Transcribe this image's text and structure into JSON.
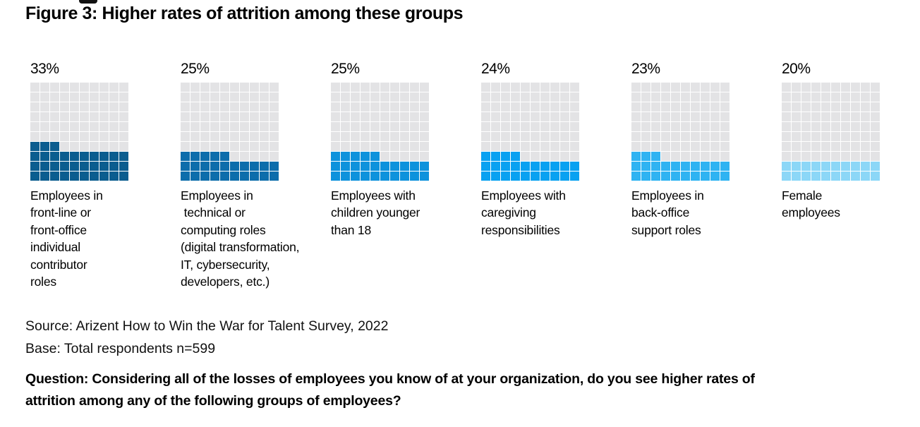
{
  "title": "Figure 3: Higher rates of attrition among these groups",
  "chart_data": {
    "type": "bar",
    "variant": "waffle-grid",
    "grid": {
      "rows": 10,
      "cols": 10,
      "cell_unit_percent": 1
    },
    "unit": "%",
    "categories": [
      "Employees in front-line or front-office individual contributor roles",
      "Employees in technical or computing roles (digital transformation, IT, cybersecurity, developers, etc.)",
      "Employees with children younger than 18",
      "Employees with caregiving responsibilities",
      "Employees in back-office support roles",
      "Female employees"
    ],
    "values": [
      33,
      25,
      25,
      24,
      23,
      20
    ],
    "series_colors": [
      "#0b5d8f",
      "#0d6dab",
      "#0e92dc",
      "#09a1f1",
      "#2fb3f2",
      "#8cd7f7"
    ],
    "empty_cell_color": "#e3e3e5",
    "value_label_position": "top-left",
    "legend": "none"
  },
  "groups": [
    {
      "percent_label": "33%",
      "value": 33,
      "color": "#0b5d8f",
      "label": "Employees in\nfront-line or\nfront-office\nindividual\ncontributor\nroles"
    },
    {
      "percent_label": "25%",
      "value": 25,
      "color": "#0d6dab",
      "label": "Employees in\n technical or\ncomputing roles\n(digital transformation,\nIT, cybersecurity,\ndevelopers, etc.)"
    },
    {
      "percent_label": "25%",
      "value": 25,
      "color": "#0e92dc",
      "label": "Employees with\nchildren younger\nthan 18"
    },
    {
      "percent_label": "24%",
      "value": 24,
      "color": "#09a1f1",
      "label": "Employees with\ncaregiving\nresponsibilities"
    },
    {
      "percent_label": "23%",
      "value": 23,
      "color": "#2fb3f2",
      "label": "Employees in\nback-office\nsupport roles"
    },
    {
      "percent_label": "20%",
      "value": 20,
      "color": "#8cd7f7",
      "label": "Female\nemployees"
    }
  ],
  "footer": {
    "source": "Source: Arizent How to Win the War for Talent Survey, 2022",
    "base": "Base: Total respondents n=599",
    "question": "Question: Considering all of the losses of employees you know of at your organization, do you see higher rates of\nattrition among any of the following groups of employees?"
  }
}
